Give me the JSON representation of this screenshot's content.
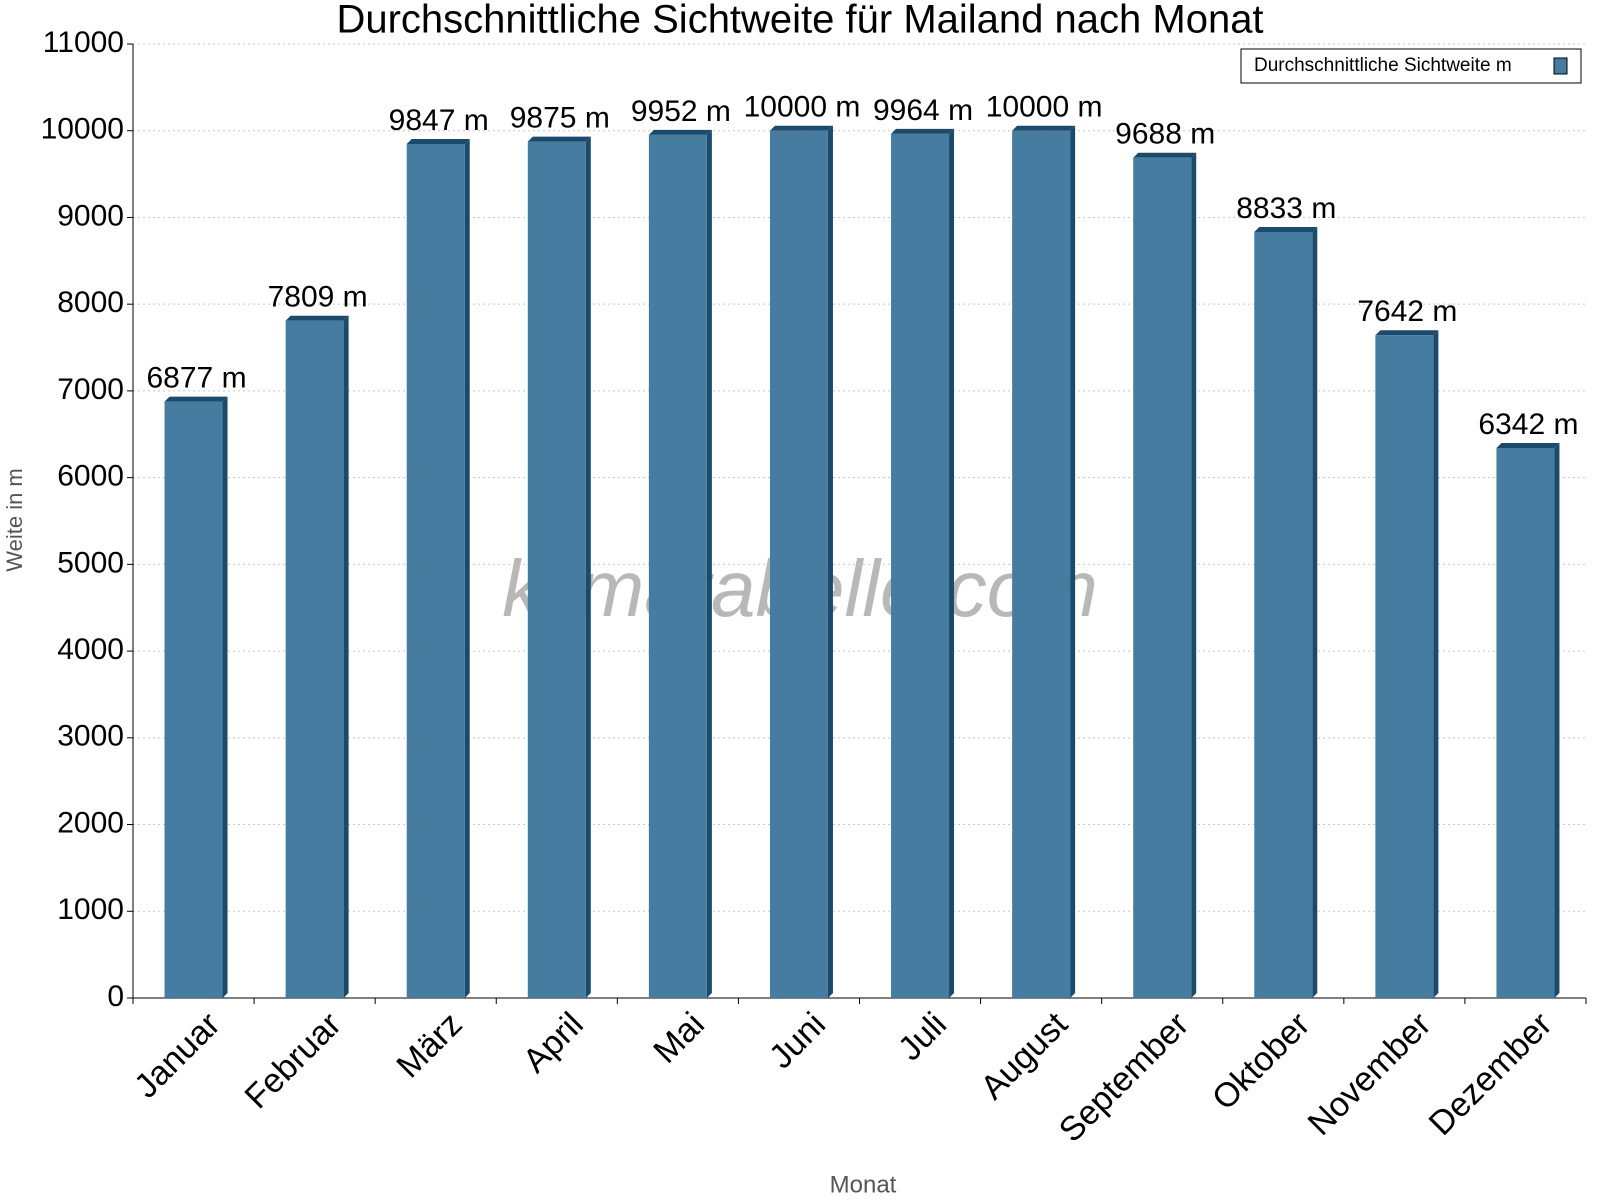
{
  "chart_data": {
    "type": "bar",
    "title": "Durchschnittliche Sichtweite für Mailand nach Monat",
    "x_label": "Monat",
    "y_label": "Weite in m",
    "watermark": "klimatabelle.com",
    "categories": [
      "Januar",
      "Februar",
      "März",
      "April",
      "Mai",
      "Juni",
      "Juli",
      "August",
      "September",
      "Oktober",
      "November",
      "Dezember"
    ],
    "series": [
      {
        "name": "Durchschnittliche Sichtweite m",
        "color": "#467c9f",
        "values": [
          6877,
          7809,
          9847,
          9875,
          9952,
          10000,
          9964,
          10000,
          9688,
          8833,
          7642,
          6342
        ],
        "value_labels": [
          "6877 m",
          "7809 m",
          "9847 m",
          "9875 m",
          "9952 m",
          "10000 m",
          "9964 m",
          "10000 m",
          "9688 m",
          "8833 m",
          "7642 m",
          "6342 m"
        ]
      }
    ],
    "ylim": [
      0,
      11000
    ],
    "yticks": [
      0,
      1000,
      2000,
      3000,
      4000,
      5000,
      6000,
      7000,
      8000,
      9000,
      10000,
      11000
    ],
    "grid": true,
    "legend": "top-right"
  }
}
